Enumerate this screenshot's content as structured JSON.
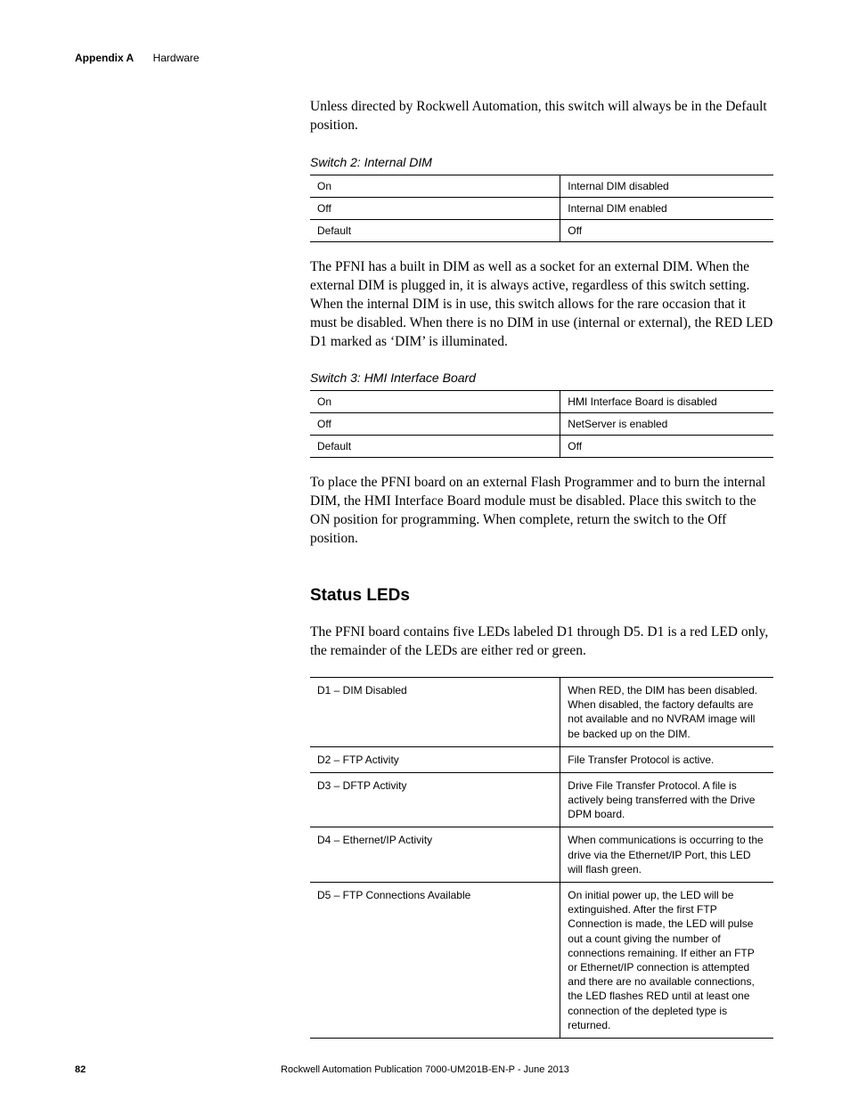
{
  "header": {
    "appendix": "Appendix A",
    "chapter": "Hardware"
  },
  "intro_paragraph": "Unless directed by Rockwell Automation, this switch will always be in the Default position.",
  "switch2": {
    "title": "Switch 2: Internal DIM",
    "rows": [
      {
        "c1": "On",
        "c2": "Internal DIM disabled"
      },
      {
        "c1": "Off",
        "c2": "Internal DIM enabled"
      },
      {
        "c1": "Default",
        "c2": "Off"
      }
    ],
    "paragraph": "The PFNI has a built in DIM as well as a socket for an external DIM. When the external DIM is plugged in, it is always active, regardless of this switch setting. When the internal DIM is in use, this switch allows for the rare occasion that it must be disabled. When there is no DIM in use (internal or external), the RED LED D1 marked as ‘DIM’ is illuminated."
  },
  "switch3": {
    "title": "Switch 3: HMI Interface Board",
    "rows": [
      {
        "c1": "On",
        "c2": "HMI Interface Board is disabled"
      },
      {
        "c1": "Off",
        "c2": "NetServer is enabled"
      },
      {
        "c1": "Default",
        "c2": "Off"
      }
    ],
    "paragraph": "To place the PFNI board on an external Flash Programmer and to burn the internal DIM, the HMI Interface Board module must be disabled. Place this switch to the ON position for programming. When complete, return the switch to the Off position."
  },
  "status_leds": {
    "heading": "Status LEDs",
    "intro": "The PFNI board contains five LEDs labeled D1 through D5. D1 is a red LED only, the remainder of the LEDs are either red or green.",
    "rows": [
      {
        "c1": "D1 – DIM Disabled",
        "c2": "When RED, the DIM has been disabled. When disabled, the factory defaults are not available and no NVRAM image will be backed up on the DIM."
      },
      {
        "c1": "D2 – FTP Activity",
        "c2": "File Transfer Protocol is active."
      },
      {
        "c1": "D3 – DFTP Activity",
        "c2": "Drive File Transfer Protocol. A file is actively being transferred with the Drive DPM board."
      },
      {
        "c1": "D4 – Ethernet/IP Activity",
        "c2": "When communications is occurring to the drive via the Ethernet/IP Port, this LED will flash green."
      },
      {
        "c1": "D5 – FTP Connections Available",
        "c2": "On initial power up, the LED will be extinguished. After the first FTP Connection is made, the LED will pulse out a count giving the number of connections remaining. If either an FTP or Ethernet/IP connection is attempted and there are no available connections, the LED flashes RED until at least one connection of the depleted type is returned."
      }
    ]
  },
  "footer": {
    "page": "82",
    "publication": "Rockwell Automation Publication 7000-UM201B-EN-P - June 2013"
  }
}
